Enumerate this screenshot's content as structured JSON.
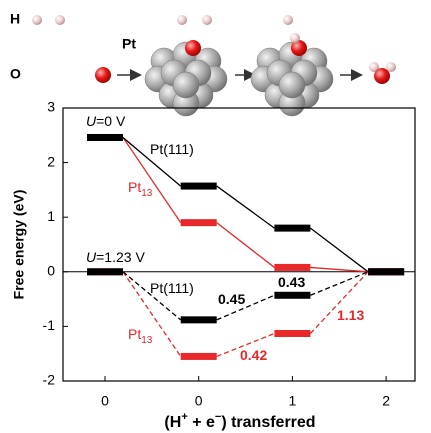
{
  "illustration": {
    "h_label": "H",
    "o_label": "O",
    "pt_label": "Pt"
  },
  "chart_data": {
    "type": "energy-levels",
    "y_label": "Free energy (eV)",
    "x_label": [
      "(H",
      "+",
      " + e",
      "−",
      ") transferred"
    ],
    "categories": [
      "0",
      "0",
      "1",
      "2"
    ],
    "ylim": [
      -2,
      3
    ],
    "yticks": [
      -2,
      -1,
      0,
      1,
      2,
      3
    ],
    "zero_line": true,
    "series": [
      {
        "color": "#e8282b",
        "dashed": false,
        "values": [
          2.46,
          0.9,
          0.08,
          0
        ]
      },
      {
        "color": "#000000",
        "dashed": false,
        "values": [
          2.46,
          1.57,
          0.8,
          0
        ]
      },
      {
        "color": "#e8282b",
        "dashed": true,
        "values": [
          0,
          -1.55,
          -1.13,
          0
        ]
      },
      {
        "color": "#000000",
        "dashed": true,
        "values": [
          0,
          -0.88,
          -0.43,
          0
        ]
      }
    ],
    "annotations": [
      {
        "italic": "U",
        "text": "=0 V",
        "color": "#000000",
        "bold": false
      },
      {
        "text": "Pt(111)",
        "color": "#000000",
        "bold": false
      },
      {
        "text": "Pt",
        "sub": "13",
        "color": "#e8282b",
        "bold": false
      },
      {
        "italic": "U",
        "text": "=1.23 V",
        "color": "#000000",
        "bold": false
      },
      {
        "text": "Pt(111)",
        "color": "#000000",
        "bold": false
      },
      {
        "text": "Pt",
        "sub": "13",
        "color": "#e8282b",
        "bold": false
      },
      {
        "text": "0.45",
        "color": "#000000",
        "bold": true
      },
      {
        "text": "0.43",
        "color": "#000000",
        "bold": true
      },
      {
        "text": "1.13",
        "color": "#e8282b",
        "bold": true
      },
      {
        "text": "0.42",
        "color": "#e8282b",
        "bold": true
      }
    ]
  }
}
